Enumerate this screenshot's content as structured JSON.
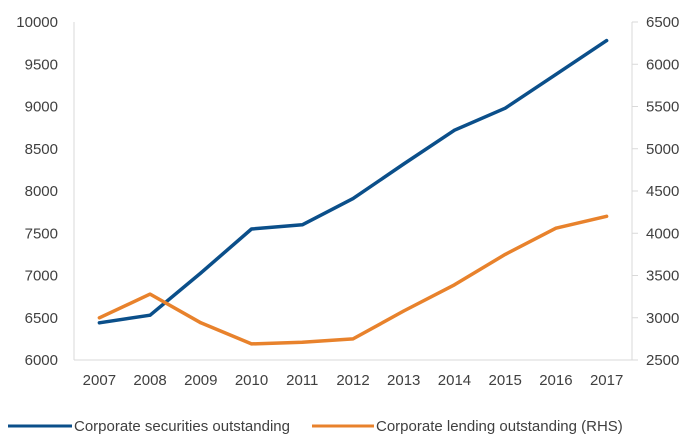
{
  "chart_data": {
    "type": "line",
    "title": "",
    "xlabel": "",
    "ylabel": "",
    "y2label": "",
    "categories": [
      "2007",
      "2008",
      "2009",
      "2010",
      "2011",
      "2012",
      "2013",
      "2014",
      "2015",
      "2016",
      "2017"
    ],
    "ylim": [
      6000,
      10000
    ],
    "y2lim": [
      2500,
      6500
    ],
    "yticks": [
      "6000",
      "6500",
      "7000",
      "7500",
      "8000",
      "8500",
      "9000",
      "9500",
      "10000"
    ],
    "y2ticks": [
      "2500",
      "3000",
      "3500",
      "4000",
      "4500",
      "5000",
      "5500",
      "6000",
      "6500"
    ],
    "grid": false,
    "legend_position": "bottom",
    "series": [
      {
        "name": "Corporate securities outstanding",
        "axis": "left",
        "color": "#0B4F8A",
        "values": [
          6440,
          6530,
          7030,
          7550,
          7600,
          7910,
          8320,
          8720,
          8980,
          9380,
          9780
        ]
      },
      {
        "name": "Corporate lending outstanding (RHS)",
        "axis": "right",
        "color": "#E8822C",
        "values": [
          3000,
          3280,
          2940,
          2690,
          2710,
          2750,
          3080,
          3390,
          3750,
          4060,
          4200
        ]
      }
    ]
  }
}
